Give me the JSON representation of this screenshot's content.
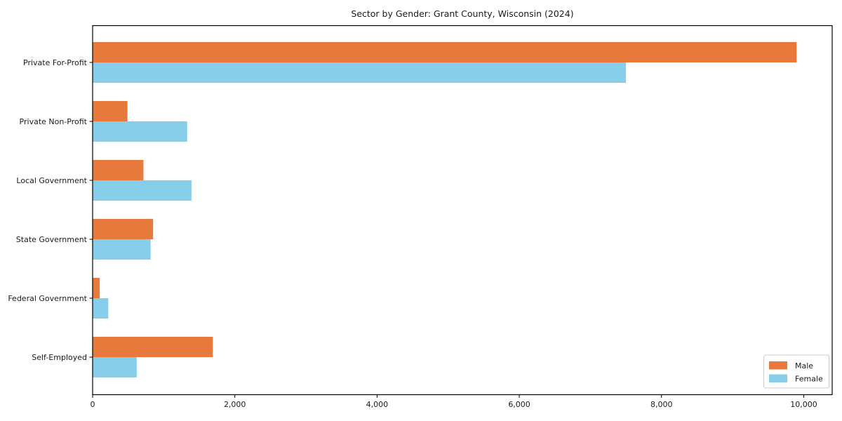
{
  "figure": {
    "kind": "matplotlib-style horizontal grouped bar chart"
  },
  "chart_data": {
    "type": "bar",
    "orientation": "horizontal",
    "title": "Sector by Gender: Grant County, Wisconsin (2024)",
    "categories": [
      "Private For-Profit",
      "Private Non-Profit",
      "Local Government",
      "State Government",
      "Federal Government",
      "Self-Employed"
    ],
    "series": [
      {
        "name": "Male",
        "color": "#e8793d",
        "values": [
          9900,
          490,
          715,
          850,
          100,
          1690
        ]
      },
      {
        "name": "Female",
        "color": "#87ceeb",
        "values": [
          7500,
          1330,
          1390,
          815,
          220,
          620
        ]
      }
    ],
    "xlabel": "",
    "ylabel": "",
    "xlim": [
      0,
      10400
    ],
    "xticks": [
      0,
      2000,
      4000,
      6000,
      8000,
      10000
    ],
    "xtick_labels": [
      "0",
      "2,000",
      "4,000",
      "6,000",
      "8,000",
      "10,000"
    ],
    "grid": false,
    "legend": {
      "position": "lower-right",
      "entries": [
        "Male",
        "Female"
      ]
    },
    "colors": {
      "axis": "#000000",
      "text": "#1a1a1a",
      "legend_border": "#cccccc",
      "background": "#ffffff"
    }
  }
}
